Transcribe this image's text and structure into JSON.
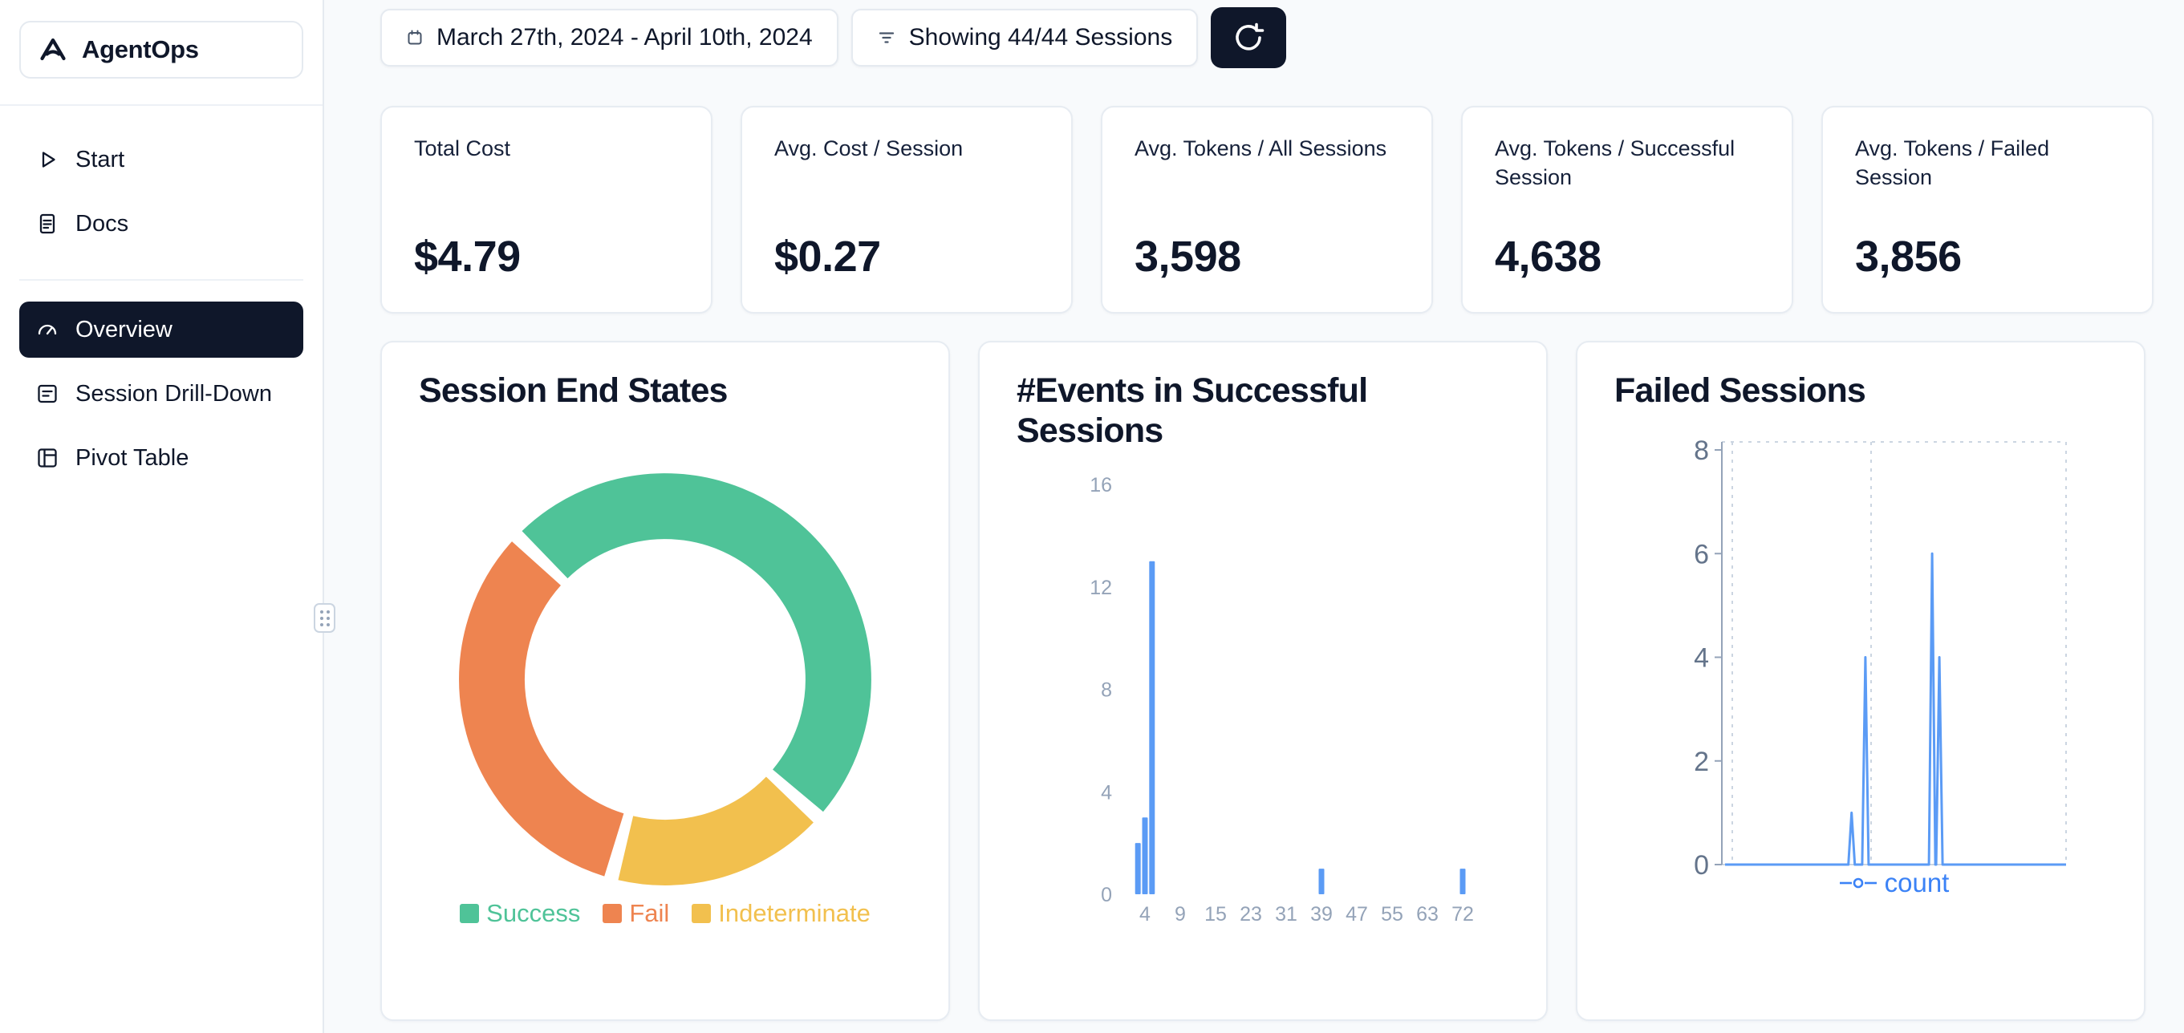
{
  "brand": {
    "name": "AgentOps"
  },
  "sidebar": {
    "top_items": [
      {
        "label": "Start"
      },
      {
        "label": "Docs"
      }
    ],
    "main_items": [
      {
        "label": "Overview",
        "active": true
      },
      {
        "label": "Session Drill-Down"
      },
      {
        "label": "Pivot Table"
      }
    ]
  },
  "topbar": {
    "date_range": "March 27th, 2024 - April 10th, 2024",
    "filter_label": "Showing 44/44 Sessions"
  },
  "stats": [
    {
      "label": "Total Cost",
      "value": "$4.79"
    },
    {
      "label": "Avg. Cost / Session",
      "value": "$0.27"
    },
    {
      "label": "Avg. Tokens / All Sessions",
      "value": "3,598"
    },
    {
      "label": "Avg. Tokens / Successful Session",
      "value": "4,638"
    },
    {
      "label": "Avg. Tokens / Failed Session",
      "value": "3,856"
    }
  ],
  "colors": {
    "accent_dark": "#0f172a",
    "success": "#4fc398",
    "fail": "#ee8450",
    "indeterminate": "#f2c04e",
    "chart_blue": "#5b9bf5",
    "legend_blue": "#3b82f6",
    "axis_gray": "#94a3b8"
  },
  "chart_data": [
    {
      "type": "pie",
      "donut": true,
      "title": "Session End States",
      "segments": [
        {
          "label": "Success",
          "pct": 50,
          "color": "#4fc398"
        },
        {
          "label": "Fail",
          "pct": 33,
          "color": "#ee8450"
        },
        {
          "label": "Indeterminate",
          "pct": 17,
          "color": "#f2c04e"
        }
      ],
      "legend_position": "bottom"
    },
    {
      "type": "bar",
      "title": "#Events in Successful Sessions",
      "xlabel": "",
      "ylabel": "",
      "x_ticks": [
        4,
        9,
        15,
        23,
        31,
        39,
        47,
        55,
        63,
        72
      ],
      "y_ticks": [
        0,
        4,
        8,
        12,
        16
      ],
      "ylim": [
        0,
        16
      ],
      "bars": [
        {
          "x": 3,
          "count": 2
        },
        {
          "x": 4,
          "count": 3
        },
        {
          "x": 5,
          "count": 13
        },
        {
          "x": 39,
          "count": 1
        },
        {
          "x": 72,
          "count": 1
        }
      ],
      "color": "#5b9bf5",
      "grid": "off"
    },
    {
      "type": "line",
      "title": "Failed Sessions",
      "y_ticks": [
        0,
        2,
        4,
        6,
        8
      ],
      "ylim": [
        0,
        8
      ],
      "series": [
        {
          "name": "count",
          "color": "#5b9bf5"
        }
      ],
      "spikes": [
        {
          "x_frac": 0.377,
          "value": 1
        },
        {
          "x_frac": 0.417,
          "value": 4
        },
        {
          "x_frac": 0.611,
          "value": 6
        },
        {
          "x_frac": 0.632,
          "value": 4
        }
      ],
      "grid": "dashed",
      "legend_position": "bottom"
    }
  ]
}
